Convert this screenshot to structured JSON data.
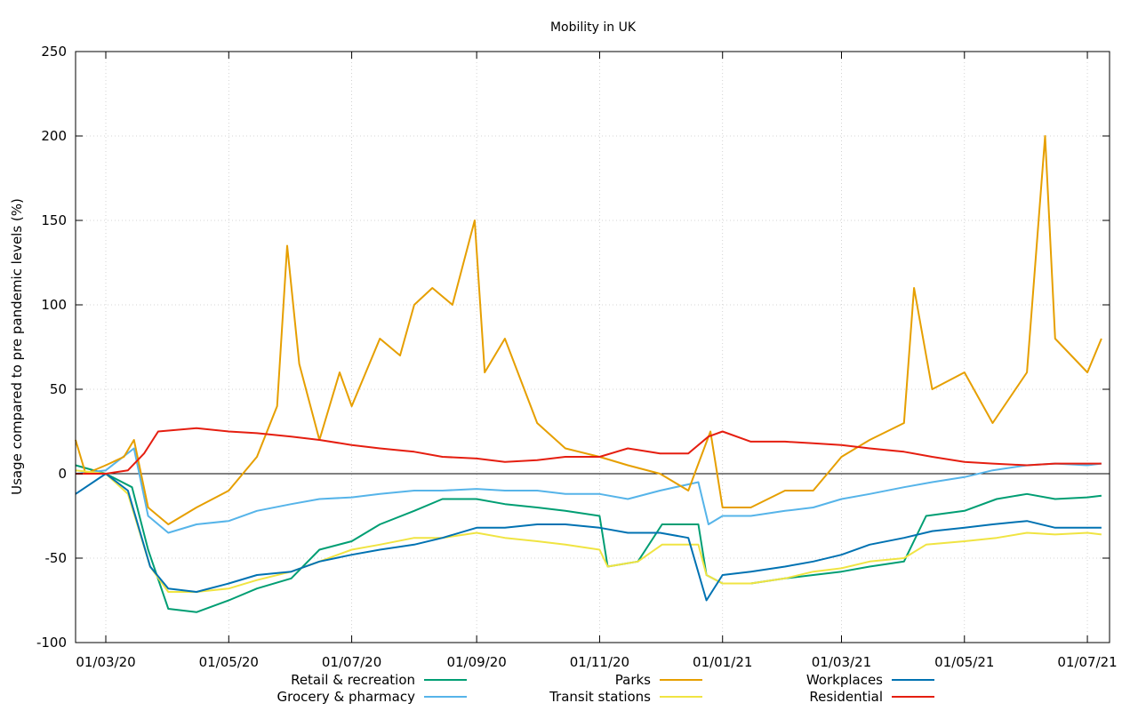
{
  "chart_data": {
    "type": "line",
    "title": "Mobility in UK",
    "xlabel": "",
    "ylabel": "Usage compared to pre pandemic levels (%)",
    "x_range": [
      "2020-02-15",
      "2021-07-12"
    ],
    "ylim": [
      -100,
      250
    ],
    "y_ticks": [
      -100,
      -50,
      0,
      50,
      100,
      150,
      200,
      250
    ],
    "x_ticks": [
      {
        "date": "2020-03-01",
        "label": "01/03/20"
      },
      {
        "date": "2020-05-01",
        "label": "01/05/20"
      },
      {
        "date": "2020-07-01",
        "label": "01/07/20"
      },
      {
        "date": "2020-09-01",
        "label": "01/09/20"
      },
      {
        "date": "2020-11-01",
        "label": "01/11/20"
      },
      {
        "date": "2021-01-01",
        "label": "01/01/21"
      },
      {
        "date": "2021-03-01",
        "label": "01/03/21"
      },
      {
        "date": "2021-05-01",
        "label": "01/05/21"
      },
      {
        "date": "2021-07-01",
        "label": "01/07/21"
      }
    ],
    "grid": true,
    "zero_line": true,
    "legend_position": "bottom",
    "series": [
      {
        "name": "Retail & recreation",
        "color": "#009e73",
        "points": [
          [
            "2020-02-15",
            5
          ],
          [
            "2020-03-01",
            0
          ],
          [
            "2020-03-14",
            -8
          ],
          [
            "2020-03-22",
            -45
          ],
          [
            "2020-04-01",
            -80
          ],
          [
            "2020-04-15",
            -82
          ],
          [
            "2020-05-01",
            -75
          ],
          [
            "2020-05-15",
            -68
          ],
          [
            "2020-06-01",
            -62
          ],
          [
            "2020-06-15",
            -45
          ],
          [
            "2020-07-01",
            -40
          ],
          [
            "2020-07-15",
            -30
          ],
          [
            "2020-08-01",
            -22
          ],
          [
            "2020-08-15",
            -15
          ],
          [
            "2020-09-01",
            -15
          ],
          [
            "2020-09-15",
            -18
          ],
          [
            "2020-10-01",
            -20
          ],
          [
            "2020-10-15",
            -22
          ],
          [
            "2020-11-01",
            -25
          ],
          [
            "2020-11-05",
            -55
          ],
          [
            "2020-11-20",
            -52
          ],
          [
            "2020-12-02",
            -30
          ],
          [
            "2020-12-20",
            -30
          ],
          [
            "2020-12-24",
            -60
          ],
          [
            "2021-01-01",
            -65
          ],
          [
            "2021-01-15",
            -65
          ],
          [
            "2021-02-01",
            -62
          ],
          [
            "2021-02-15",
            -60
          ],
          [
            "2021-03-01",
            -58
          ],
          [
            "2021-03-15",
            -55
          ],
          [
            "2021-04-01",
            -52
          ],
          [
            "2021-04-12",
            -25
          ],
          [
            "2021-05-01",
            -22
          ],
          [
            "2021-05-17",
            -15
          ],
          [
            "2021-06-01",
            -12
          ],
          [
            "2021-06-15",
            -15
          ],
          [
            "2021-07-01",
            -14
          ],
          [
            "2021-07-08",
            -13
          ]
        ]
      },
      {
        "name": "Grocery & pharmacy",
        "color": "#56b4e9",
        "points": [
          [
            "2020-02-15",
            0
          ],
          [
            "2020-03-01",
            2
          ],
          [
            "2020-03-15",
            15
          ],
          [
            "2020-03-22",
            -25
          ],
          [
            "2020-04-01",
            -35
          ],
          [
            "2020-04-15",
            -30
          ],
          [
            "2020-05-01",
            -28
          ],
          [
            "2020-05-15",
            -22
          ],
          [
            "2020-06-01",
            -18
          ],
          [
            "2020-06-15",
            -15
          ],
          [
            "2020-07-01",
            -14
          ],
          [
            "2020-07-15",
            -12
          ],
          [
            "2020-08-01",
            -10
          ],
          [
            "2020-08-15",
            -10
          ],
          [
            "2020-09-01",
            -9
          ],
          [
            "2020-09-15",
            -10
          ],
          [
            "2020-10-01",
            -10
          ],
          [
            "2020-10-15",
            -12
          ],
          [
            "2020-11-01",
            -12
          ],
          [
            "2020-11-15",
            -15
          ],
          [
            "2020-12-01",
            -10
          ],
          [
            "2020-12-20",
            -5
          ],
          [
            "2020-12-25",
            -30
          ],
          [
            "2021-01-01",
            -25
          ],
          [
            "2021-01-15",
            -25
          ],
          [
            "2021-02-01",
            -22
          ],
          [
            "2021-02-15",
            -20
          ],
          [
            "2021-03-01",
            -15
          ],
          [
            "2021-03-15",
            -12
          ],
          [
            "2021-04-01",
            -8
          ],
          [
            "2021-04-15",
            -5
          ],
          [
            "2021-05-01",
            -2
          ],
          [
            "2021-05-15",
            2
          ],
          [
            "2021-06-01",
            5
          ],
          [
            "2021-06-15",
            6
          ],
          [
            "2021-07-01",
            5
          ],
          [
            "2021-07-08",
            6
          ]
        ]
      },
      {
        "name": "Parks",
        "color": "#e69f00",
        "points": [
          [
            "2020-02-15",
            20
          ],
          [
            "2020-02-20",
            0
          ],
          [
            "2020-03-01",
            5
          ],
          [
            "2020-03-10",
            10
          ],
          [
            "2020-03-15",
            20
          ],
          [
            "2020-03-22",
            -20
          ],
          [
            "2020-04-01",
            -30
          ],
          [
            "2020-04-15",
            -20
          ],
          [
            "2020-05-01",
            -10
          ],
          [
            "2020-05-15",
            10
          ],
          [
            "2020-05-25",
            40
          ],
          [
            "2020-05-30",
            135
          ],
          [
            "2020-06-05",
            65
          ],
          [
            "2020-06-15",
            20
          ],
          [
            "2020-06-25",
            60
          ],
          [
            "2020-07-01",
            40
          ],
          [
            "2020-07-15",
            80
          ],
          [
            "2020-07-25",
            70
          ],
          [
            "2020-08-01",
            100
          ],
          [
            "2020-08-10",
            110
          ],
          [
            "2020-08-20",
            100
          ],
          [
            "2020-08-31",
            150
          ],
          [
            "2020-09-05",
            60
          ],
          [
            "2020-09-15",
            80
          ],
          [
            "2020-10-01",
            30
          ],
          [
            "2020-10-15",
            15
          ],
          [
            "2020-11-01",
            10
          ],
          [
            "2020-11-15",
            5
          ],
          [
            "2020-12-01",
            0
          ],
          [
            "2020-12-15",
            -10
          ],
          [
            "2020-12-26",
            25
          ],
          [
            "2021-01-01",
            -20
          ],
          [
            "2021-01-15",
            -20
          ],
          [
            "2021-02-01",
            -10
          ],
          [
            "2021-02-15",
            -10
          ],
          [
            "2021-03-01",
            10
          ],
          [
            "2021-03-15",
            20
          ],
          [
            "2021-04-01",
            30
          ],
          [
            "2021-04-06",
            110
          ],
          [
            "2021-04-15",
            50
          ],
          [
            "2021-05-01",
            60
          ],
          [
            "2021-05-15",
            30
          ],
          [
            "2021-06-01",
            60
          ],
          [
            "2021-06-10",
            200
          ],
          [
            "2021-06-15",
            80
          ],
          [
            "2021-07-01",
            60
          ],
          [
            "2021-07-08",
            80
          ]
        ]
      },
      {
        "name": "Transit stations",
        "color": "#f0e442",
        "points": [
          [
            "2020-02-15",
            2
          ],
          [
            "2020-03-01",
            0
          ],
          [
            "2020-03-12",
            -12
          ],
          [
            "2020-03-23",
            -55
          ],
          [
            "2020-04-01",
            -70
          ],
          [
            "2020-04-15",
            -70
          ],
          [
            "2020-05-01",
            -68
          ],
          [
            "2020-05-15",
            -63
          ],
          [
            "2020-06-01",
            -58
          ],
          [
            "2020-06-15",
            -52
          ],
          [
            "2020-07-01",
            -45
          ],
          [
            "2020-07-15",
            -42
          ],
          [
            "2020-08-01",
            -38
          ],
          [
            "2020-08-15",
            -38
          ],
          [
            "2020-09-01",
            -35
          ],
          [
            "2020-09-15",
            -38
          ],
          [
            "2020-10-01",
            -40
          ],
          [
            "2020-10-15",
            -42
          ],
          [
            "2020-11-01",
            -45
          ],
          [
            "2020-11-05",
            -55
          ],
          [
            "2020-11-20",
            -52
          ],
          [
            "2020-12-02",
            -42
          ],
          [
            "2020-12-20",
            -42
          ],
          [
            "2020-12-24",
            -60
          ],
          [
            "2021-01-01",
            -65
          ],
          [
            "2021-01-15",
            -65
          ],
          [
            "2021-02-01",
            -62
          ],
          [
            "2021-02-15",
            -58
          ],
          [
            "2021-03-01",
            -56
          ],
          [
            "2021-03-15",
            -52
          ],
          [
            "2021-04-01",
            -50
          ],
          [
            "2021-04-12",
            -42
          ],
          [
            "2021-05-01",
            -40
          ],
          [
            "2021-05-17",
            -38
          ],
          [
            "2021-06-01",
            -35
          ],
          [
            "2021-06-15",
            -36
          ],
          [
            "2021-07-01",
            -35
          ],
          [
            "2021-07-08",
            -36
          ]
        ]
      },
      {
        "name": "Workplaces",
        "color": "#0072b2",
        "points": [
          [
            "2020-02-15",
            -12
          ],
          [
            "2020-03-01",
            0
          ],
          [
            "2020-03-12",
            -10
          ],
          [
            "2020-03-23",
            -55
          ],
          [
            "2020-04-01",
            -68
          ],
          [
            "2020-04-15",
            -70
          ],
          [
            "2020-05-01",
            -65
          ],
          [
            "2020-05-15",
            -60
          ],
          [
            "2020-06-01",
            -58
          ],
          [
            "2020-06-15",
            -52
          ],
          [
            "2020-07-01",
            -48
          ],
          [
            "2020-07-15",
            -45
          ],
          [
            "2020-08-01",
            -42
          ],
          [
            "2020-08-15",
            -38
          ],
          [
            "2020-09-01",
            -32
          ],
          [
            "2020-09-15",
            -32
          ],
          [
            "2020-10-01",
            -30
          ],
          [
            "2020-10-15",
            -30
          ],
          [
            "2020-11-01",
            -32
          ],
          [
            "2020-11-15",
            -35
          ],
          [
            "2020-12-01",
            -35
          ],
          [
            "2020-12-15",
            -38
          ],
          [
            "2020-12-24",
            -75
          ],
          [
            "2021-01-01",
            -60
          ],
          [
            "2021-01-15",
            -58
          ],
          [
            "2021-02-01",
            -55
          ],
          [
            "2021-02-15",
            -52
          ],
          [
            "2021-03-01",
            -48
          ],
          [
            "2021-03-15",
            -42
          ],
          [
            "2021-04-01",
            -38
          ],
          [
            "2021-04-15",
            -34
          ],
          [
            "2021-05-01",
            -32
          ],
          [
            "2021-05-15",
            -30
          ],
          [
            "2021-06-01",
            -28
          ],
          [
            "2021-06-15",
            -32
          ],
          [
            "2021-07-01",
            -32
          ],
          [
            "2021-07-08",
            -32
          ]
        ]
      },
      {
        "name": "Residential",
        "color": "#e51e10",
        "points": [
          [
            "2020-02-15",
            0
          ],
          [
            "2020-03-01",
            0
          ],
          [
            "2020-03-12",
            2
          ],
          [
            "2020-03-20",
            12
          ],
          [
            "2020-03-27",
            25
          ],
          [
            "2020-04-15",
            27
          ],
          [
            "2020-05-01",
            25
          ],
          [
            "2020-05-15",
            24
          ],
          [
            "2020-06-01",
            22
          ],
          [
            "2020-06-15",
            20
          ],
          [
            "2020-07-01",
            17
          ],
          [
            "2020-07-15",
            15
          ],
          [
            "2020-08-01",
            13
          ],
          [
            "2020-08-15",
            10
          ],
          [
            "2020-09-01",
            9
          ],
          [
            "2020-09-15",
            7
          ],
          [
            "2020-10-01",
            8
          ],
          [
            "2020-10-15",
            10
          ],
          [
            "2020-11-01",
            10
          ],
          [
            "2020-11-15",
            15
          ],
          [
            "2020-12-01",
            12
          ],
          [
            "2020-12-15",
            12
          ],
          [
            "2020-12-25",
            22
          ],
          [
            "2021-01-01",
            25
          ],
          [
            "2021-01-15",
            19
          ],
          [
            "2021-02-01",
            19
          ],
          [
            "2021-02-15",
            18
          ],
          [
            "2021-03-01",
            17
          ],
          [
            "2021-03-15",
            15
          ],
          [
            "2021-04-01",
            13
          ],
          [
            "2021-04-15",
            10
          ],
          [
            "2021-05-01",
            7
          ],
          [
            "2021-05-15",
            6
          ],
          [
            "2021-06-01",
            5
          ],
          [
            "2021-06-15",
            6
          ],
          [
            "2021-07-01",
            6
          ],
          [
            "2021-07-08",
            6
          ]
        ]
      }
    ]
  }
}
